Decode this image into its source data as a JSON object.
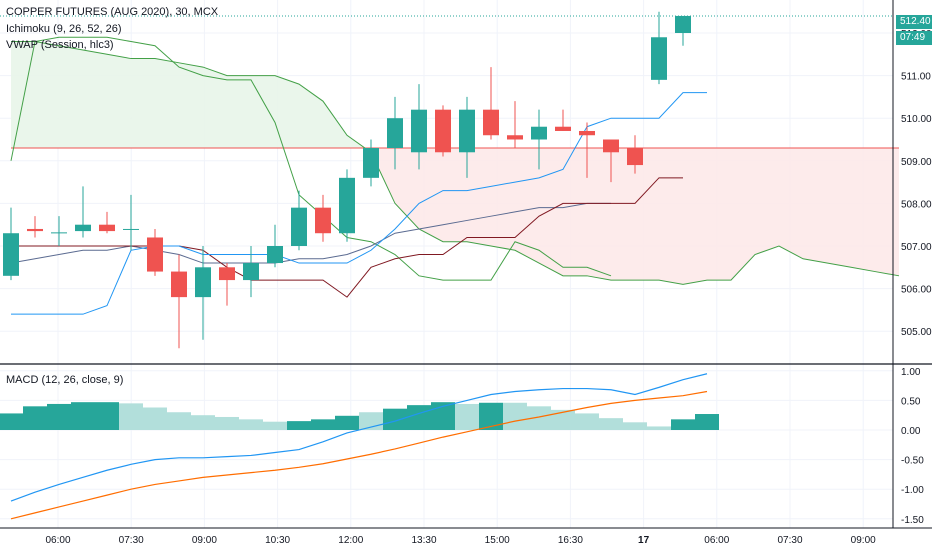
{
  "header": {
    "symbol_line": "COPPER FUTURES (AUG 2020), 30, MCX",
    "indicator_1": "Ichimoku (9, 26, 52, 26)",
    "indicator_2": "VWAP (Session, hlc3)",
    "macd_label": "MACD (12, 26, close, 9)"
  },
  "tags": {
    "last_price": "512.40",
    "countdown": "07:49"
  },
  "colors": {
    "up": "#26a69a",
    "down": "#ef5350",
    "hist_up_strong": "#26a69a",
    "hist_up_weak": "#b2dfdb",
    "macd_line": "#2196f3",
    "signal_line": "#ff6d00",
    "tenkan": "#2196f3",
    "kijun": "#801922",
    "lagging": "#43a047",
    "vwap": "#5b6b91",
    "cloud_green": "#e8f5e9",
    "cloud_red": "#fde9e9"
  },
  "chart_data": [
    {
      "type": "candlestick",
      "title": "COPPER FUTURES (AUG 2020), 30, MCX",
      "price_axis": [
        "512.00",
        "511.00",
        "510.00",
        "509.00",
        "508.00",
        "507.00",
        "506.00",
        "505.00"
      ],
      "ylim": [
        504.3,
        512.8
      ],
      "time_axis": [
        "06:00",
        "07:30",
        "09:00",
        "10:30",
        "12:00",
        "13:30",
        "15:00",
        "16:30",
        "17",
        "06:00",
        "07:30",
        "09:00"
      ],
      "candles": [
        {
          "o": 506.3,
          "h": 507.9,
          "l": 506.2,
          "c": 507.3
        },
        {
          "o": 507.4,
          "h": 507.7,
          "l": 507.2,
          "c": 507.35
        },
        {
          "o": 507.3,
          "h": 507.7,
          "l": 507.0,
          "c": 507.32
        },
        {
          "o": 507.35,
          "h": 508.4,
          "l": 507.2,
          "c": 507.5
        },
        {
          "o": 507.5,
          "h": 507.8,
          "l": 507.3,
          "c": 507.35
        },
        {
          "o": 507.4,
          "h": 508.2,
          "l": 506.9,
          "c": 507.4
        },
        {
          "o": 507.2,
          "h": 507.4,
          "l": 506.3,
          "c": 506.4
        },
        {
          "o": 506.4,
          "h": 506.8,
          "l": 504.6,
          "c": 505.8
        },
        {
          "o": 505.8,
          "h": 507.0,
          "l": 504.8,
          "c": 506.5
        },
        {
          "o": 506.5,
          "h": 506.6,
          "l": 505.6,
          "c": 506.2
        },
        {
          "o": 506.2,
          "h": 507.0,
          "l": 505.8,
          "c": 506.6
        },
        {
          "o": 506.6,
          "h": 507.5,
          "l": 506.5,
          "c": 507.0
        },
        {
          "o": 507.0,
          "h": 508.3,
          "l": 506.9,
          "c": 507.9
        },
        {
          "o": 507.9,
          "h": 508.2,
          "l": 507.1,
          "c": 507.3
        },
        {
          "o": 507.3,
          "h": 508.8,
          "l": 507.1,
          "c": 508.6
        },
        {
          "o": 508.6,
          "h": 509.5,
          "l": 508.4,
          "c": 509.3
        },
        {
          "o": 509.3,
          "h": 510.5,
          "l": 508.8,
          "c": 510.0
        },
        {
          "o": 509.2,
          "h": 510.8,
          "l": 508.8,
          "c": 510.2
        },
        {
          "o": 510.2,
          "h": 510.3,
          "l": 509.1,
          "c": 509.2
        },
        {
          "o": 509.2,
          "h": 510.5,
          "l": 508.6,
          "c": 510.2
        },
        {
          "o": 510.2,
          "h": 511.2,
          "l": 509.5,
          "c": 509.6
        },
        {
          "o": 509.6,
          "h": 510.4,
          "l": 509.3,
          "c": 509.5
        },
        {
          "o": 509.5,
          "h": 510.2,
          "l": 508.8,
          "c": 509.8
        },
        {
          "o": 509.8,
          "h": 510.2,
          "l": 509.7,
          "c": 509.7
        },
        {
          "o": 509.7,
          "h": 509.9,
          "l": 508.6,
          "c": 509.6
        },
        {
          "o": 509.5,
          "h": 509.5,
          "l": 508.5,
          "c": 509.2
        },
        {
          "o": 509.3,
          "h": 509.6,
          "l": 508.7,
          "c": 508.9
        },
        {
          "o": 510.9,
          "h": 512.5,
          "l": 510.8,
          "c": 511.9
        },
        {
          "o": 512.0,
          "h": 512.4,
          "l": 511.7,
          "c": 512.4
        }
      ],
      "tenkan": [
        505.4,
        505.4,
        505.4,
        505.4,
        505.6,
        506.9,
        507.0,
        507.0,
        506.8,
        506.8,
        506.8,
        506.8,
        506.6,
        506.6,
        506.6,
        506.9,
        507.4,
        508.0,
        508.3,
        508.3,
        508.4,
        508.5,
        508.6,
        508.8,
        509.8,
        510.0,
        510.0,
        510.0,
        510.6,
        510.6
      ],
      "kijun": [
        507.0,
        507.0,
        507.0,
        507.0,
        507.0,
        507.0,
        507.0,
        507.0,
        506.9,
        506.5,
        506.2,
        506.2,
        506.2,
        506.2,
        505.8,
        506.5,
        506.7,
        506.8,
        506.8,
        507.2,
        507.2,
        507.2,
        507.7,
        508.0,
        508.0,
        508.0,
        508.0,
        508.6,
        508.6
      ],
      "vwap": [
        506.6,
        506.7,
        506.8,
        506.9,
        506.9,
        507.0,
        506.9,
        506.8,
        506.6,
        506.6,
        506.6,
        506.6,
        506.7,
        506.7,
        506.8,
        507.0,
        507.3,
        507.4,
        507.5,
        507.6,
        507.7,
        507.8,
        507.9,
        507.9,
        508.0,
        508.0
      ],
      "lagging": [
        509.0,
        511.8,
        511.9,
        511.9,
        511.9,
        511.8,
        511.7,
        511.2,
        511.0,
        510.9,
        510.9,
        509.9,
        508.2,
        507.7,
        507.2,
        507.1,
        506.8,
        506.3,
        506.2,
        506.2,
        506.2,
        507.1,
        506.9,
        506.5,
        506.5,
        506.3
      ],
      "cloud_a": [
        509.3,
        509.3,
        509.3,
        509.3,
        509.3,
        509.3,
        509.3,
        509.3,
        509.3,
        509.3,
        509.3,
        509.3,
        509.3,
        509.3,
        509.3,
        509.3,
        509.3,
        509.3,
        509.3,
        509.3,
        509.3,
        509.3,
        509.3,
        509.3,
        509.3,
        509.3,
        509.3,
        509.3,
        509.3,
        509.3,
        509.3,
        509.3,
        509.3,
        509.3,
        509.3,
        509.3,
        509.3,
        509.3
      ],
      "cloud_b": [
        511.8,
        511.8,
        511.7,
        511.6,
        511.5,
        511.4,
        511.4,
        511.3,
        511.2,
        511.0,
        511.0,
        511.0,
        510.8,
        510.4,
        509.6,
        509.2,
        508.0,
        507.4,
        507.1,
        507.1,
        507.0,
        506.9,
        506.6,
        506.3,
        506.3,
        506.2,
        506.2,
        506.2,
        506.1,
        506.2,
        506.2,
        506.8,
        507.0,
        506.7,
        506.6,
        506.5,
        506.4,
        506.3
      ]
    },
    {
      "type": "bar",
      "title": "MACD (12, 26, close, 9)",
      "value_axis": [
        "1.00",
        "0.50",
        "0.00",
        "-0.50",
        "-1.00",
        "-1.50"
      ],
      "ylim": [
        -1.5,
        1.0
      ],
      "histogram": [
        0.28,
        0.4,
        0.44,
        0.47,
        0.47,
        0.45,
        0.38,
        0.3,
        0.25,
        0.22,
        0.18,
        0.14,
        0.15,
        0.18,
        0.24,
        0.3,
        0.36,
        0.42,
        0.47,
        0.44,
        0.46,
        0.46,
        0.4,
        0.34,
        0.28,
        0.2,
        0.13,
        0.06,
        0.18,
        0.27
      ],
      "histogram_strong": [
        true,
        true,
        true,
        true,
        true,
        false,
        false,
        false,
        false,
        false,
        false,
        false,
        true,
        true,
        true,
        false,
        true,
        true,
        true,
        false,
        true,
        false,
        false,
        false,
        false,
        false,
        false,
        false,
        true,
        true
      ],
      "macd": [
        -1.2,
        -1.05,
        -0.92,
        -0.8,
        -0.68,
        -0.58,
        -0.5,
        -0.47,
        -0.47,
        -0.45,
        -0.43,
        -0.38,
        -0.33,
        -0.2,
        -0.05,
        0.05,
        0.15,
        0.28,
        0.4,
        0.5,
        0.6,
        0.65,
        0.68,
        0.7,
        0.7,
        0.68,
        0.6,
        0.72,
        0.85,
        0.95
      ],
      "signal": [
        -1.5,
        -1.4,
        -1.3,
        -1.2,
        -1.1,
        -1.0,
        -0.92,
        -0.86,
        -0.8,
        -0.76,
        -0.72,
        -0.68,
        -0.63,
        -0.57,
        -0.49,
        -0.41,
        -0.32,
        -0.22,
        -0.12,
        -0.03,
        0.06,
        0.15,
        0.22,
        0.3,
        0.38,
        0.45,
        0.5,
        0.54,
        0.58,
        0.65
      ]
    }
  ]
}
